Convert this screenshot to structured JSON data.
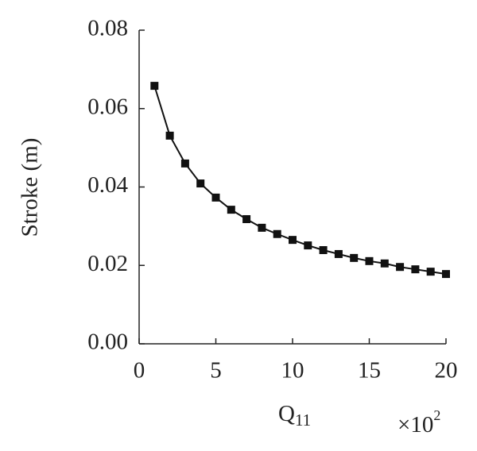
{
  "chart_data": {
    "type": "line",
    "ylabel": "Stroke (m)",
    "xlabel": "Q",
    "xlabel_subscript": "11",
    "x_multiplier": "×10",
    "x_multiplier_exponent": "2",
    "x": [
      1,
      2,
      3,
      4,
      5,
      6,
      7,
      8,
      9,
      10,
      11,
      12,
      13,
      14,
      15,
      16,
      17,
      18,
      19,
      20
    ],
    "series": [
      {
        "color": "#111111",
        "values": [
          0.0658,
          0.0531,
          0.046,
          0.0409,
          0.0373,
          0.0342,
          0.0318,
          0.0296,
          0.028,
          0.0265,
          0.0251,
          0.0239,
          0.0229,
          0.0219,
          0.0211,
          0.0205,
          0.0196,
          0.019,
          0.0184,
          0.0178
        ]
      }
    ],
    "xlim": [
      0,
      20
    ],
    "xticks": [
      0,
      5,
      10,
      15,
      20
    ],
    "ylim": [
      0,
      0.08
    ],
    "yticks": [
      {
        "value": 0,
        "label": "0.00"
      },
      {
        "value": 0.02,
        "label": "0.02"
      },
      {
        "value": 0.04,
        "label": "0.04"
      },
      {
        "value": 0.06,
        "label": "0.06"
      },
      {
        "value": 0.08,
        "label": "0.08"
      }
    ],
    "marker": "square"
  }
}
